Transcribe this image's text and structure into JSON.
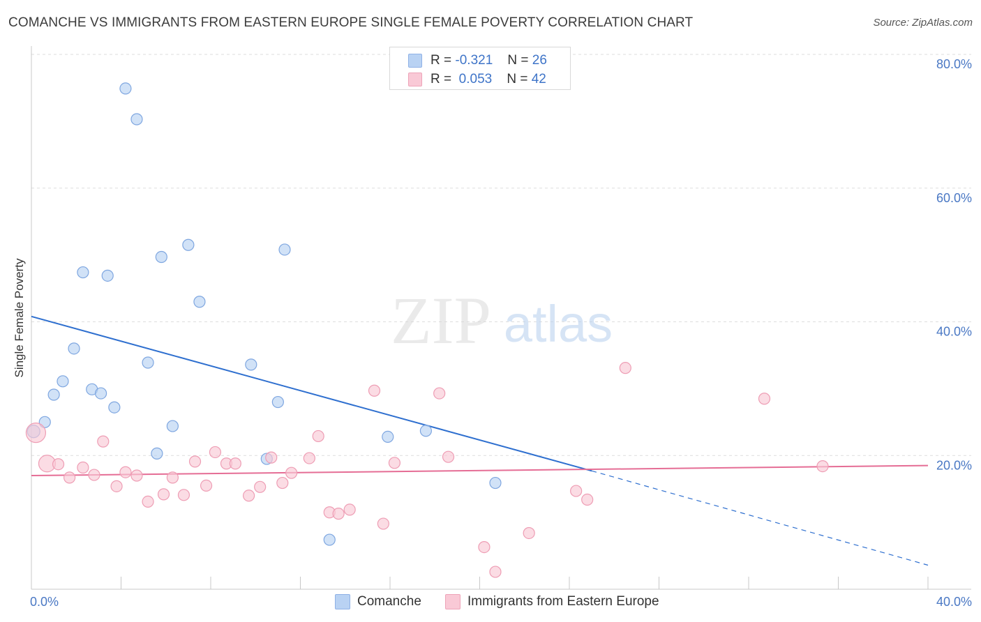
{
  "chart_data": {
    "type": "scatter",
    "title": "COMANCHE VS IMMIGRANTS FROM EASTERN EUROPE SINGLE FEMALE POVERTY CORRELATION CHART",
    "source": "Source: ZipAtlas.com",
    "watermark": {
      "zip": "ZIP",
      "atlas": "atlas"
    },
    "ylabel": "Single Female Poverty",
    "xlim": [
      0,
      40
    ],
    "ylim": [
      0,
      80
    ],
    "x_tick_labels": {
      "left": "0.0%",
      "right": "40.0%"
    },
    "y_ticks": [
      {
        "value": 80,
        "label": "80.0%"
      },
      {
        "value": 60,
        "label": "60.0%"
      },
      {
        "value": 40,
        "label": "40.0%"
      },
      {
        "value": 20,
        "label": "20.0%"
      }
    ],
    "x_minor_ticks": [
      4,
      8,
      12,
      16,
      20,
      24,
      28,
      32,
      36,
      40
    ],
    "legend_stats": [
      {
        "r_key": "R =",
        "r_value": "-0.321",
        "n_key": "N =",
        "n_value": "26"
      },
      {
        "r_key": "R =",
        "r_value": "0.053",
        "n_key": "N =",
        "n_value": "42"
      }
    ],
    "series": [
      {
        "name": "Comanche",
        "fill": "#b9d2f3",
        "stroke": "#7ea6e0",
        "line_color": "#2e6fcf",
        "trend": {
          "x0": 0,
          "y0": 40.8,
          "x1": 25,
          "y1": 17.7,
          "dash_to_x": 40,
          "dash_to_y": 3.6
        },
        "points": [
          [
            0.1,
            23.6
          ],
          [
            0.6,
            25.0
          ],
          [
            1.0,
            29.1
          ],
          [
            1.4,
            31.1
          ],
          [
            1.9,
            36.0
          ],
          [
            2.3,
            47.4
          ],
          [
            2.7,
            29.9
          ],
          [
            3.1,
            29.3
          ],
          [
            3.4,
            46.9
          ],
          [
            3.7,
            27.2
          ],
          [
            4.2,
            74.9
          ],
          [
            4.7,
            70.3
          ],
          [
            5.2,
            33.9
          ],
          [
            5.6,
            20.3
          ],
          [
            5.8,
            49.7
          ],
          [
            6.3,
            24.4
          ],
          [
            7.0,
            51.5
          ],
          [
            7.5,
            43.0
          ],
          [
            9.8,
            33.6
          ],
          [
            10.5,
            19.5
          ],
          [
            11.0,
            28.0
          ],
          [
            11.3,
            50.8
          ],
          [
            13.3,
            7.4
          ],
          [
            15.9,
            22.8
          ],
          [
            17.6,
            23.7
          ],
          [
            20.7,
            15.9
          ]
        ]
      },
      {
        "name": "Immigrants from Eastern Europe",
        "fill": "#f9c9d6",
        "stroke": "#ee9db4",
        "line_color": "#e56d95",
        "trend": {
          "x0": 0,
          "y0": 17.0,
          "x1": 40,
          "y1": 18.5
        },
        "points": [
          [
            0.2,
            23.4
          ],
          [
            0.7,
            18.8
          ],
          [
            1.2,
            18.7
          ],
          [
            1.7,
            16.7
          ],
          [
            2.3,
            18.2
          ],
          [
            2.8,
            17.1
          ],
          [
            3.2,
            22.1
          ],
          [
            3.8,
            15.4
          ],
          [
            4.2,
            17.5
          ],
          [
            4.7,
            17.0
          ],
          [
            5.2,
            13.1
          ],
          [
            5.9,
            14.2
          ],
          [
            6.3,
            16.7
          ],
          [
            6.8,
            14.1
          ],
          [
            7.3,
            19.1
          ],
          [
            7.8,
            15.5
          ],
          [
            8.2,
            20.5
          ],
          [
            8.7,
            18.8
          ],
          [
            9.1,
            18.8
          ],
          [
            9.7,
            14.0
          ],
          [
            10.2,
            15.3
          ],
          [
            10.7,
            19.7
          ],
          [
            11.2,
            15.9
          ],
          [
            11.6,
            17.4
          ],
          [
            12.4,
            19.6
          ],
          [
            12.8,
            22.9
          ],
          [
            13.3,
            11.5
          ],
          [
            13.7,
            11.3
          ],
          [
            14.2,
            11.9
          ],
          [
            15.3,
            29.7
          ],
          [
            15.7,
            9.8
          ],
          [
            16.2,
            18.9
          ],
          [
            18.2,
            29.3
          ],
          [
            18.6,
            19.8
          ],
          [
            20.2,
            6.3
          ],
          [
            20.7,
            2.6
          ],
          [
            22.2,
            8.4
          ],
          [
            24.3,
            14.7
          ],
          [
            24.8,
            13.4
          ],
          [
            26.5,
            33.1
          ],
          [
            32.7,
            28.5
          ],
          [
            35.3,
            18.4
          ]
        ]
      }
    ]
  }
}
